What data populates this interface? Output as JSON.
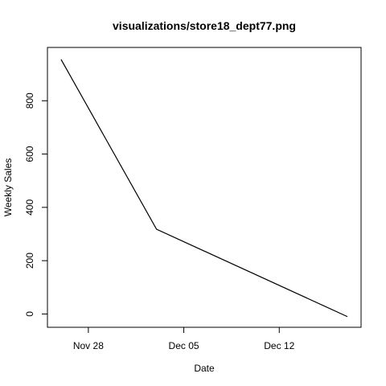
{
  "chart_data": {
    "type": "line",
    "title": "visualizations/store18_dept77.png",
    "xlabel": "Date",
    "ylabel": "Weekly Sales",
    "x": [
      "2010-11-26",
      "2010-12-03",
      "2010-12-17"
    ],
    "series": [
      {
        "values": [
          955,
          318,
          -10
        ],
        "color": "#000000"
      }
    ],
    "xlim": [
      "2010-11-25",
      "2010-12-18"
    ],
    "ylim": [
      -50,
      1000
    ],
    "x_ticks": [
      {
        "date": "2010-11-28",
        "label": "Nov 28"
      },
      {
        "date": "2010-12-05",
        "label": "Dec 05"
      },
      {
        "date": "2010-12-12",
        "label": "Dec 12"
      }
    ],
    "y_ticks": [
      0,
      200,
      400,
      600,
      800
    ],
    "grid": false,
    "legend": "none"
  }
}
